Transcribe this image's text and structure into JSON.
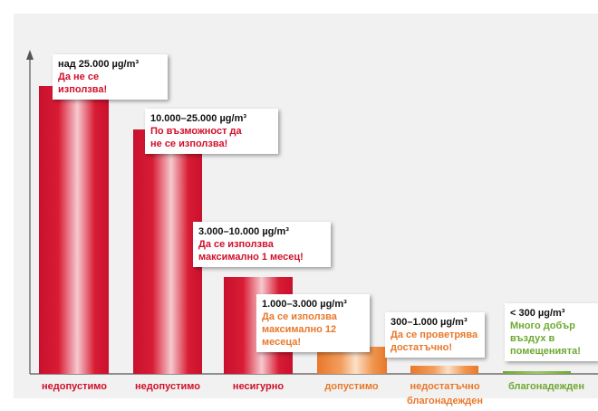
{
  "items": [
    {
      "range": "над 25.000 µg/m³",
      "note": [
        "Да не се",
        "използва!"
      ],
      "category": [
        "недопустимо"
      ]
    },
    {
      "range": "10.000–25.000 µg/m³",
      "note": [
        "По възможност да",
        "не се използва!"
      ],
      "category": [
        "недопустимо"
      ]
    },
    {
      "range": "3.000–10.000 µg/m³",
      "note": [
        "Да се използва",
        "максимално 1 месец!"
      ],
      "category": [
        "несигурно"
      ]
    },
    {
      "range": "1.000–3.000 µg/m³",
      "note": [
        "Да се използва",
        "максимално 12",
        "месеца!"
      ],
      "category": [
        "допустимо"
      ]
    },
    {
      "range": "300–1.000 µg/m³",
      "note": [
        "Да се проветрява",
        "достатъчно!"
      ],
      "category": [
        "недостатъчно",
        "благонадежден"
      ]
    },
    {
      "range": "< 300 µg/m³",
      "note": [
        "Много добър",
        "въздух в",
        "помещенията!"
      ],
      "category": [
        "благонадежден"
      ]
    }
  ]
}
